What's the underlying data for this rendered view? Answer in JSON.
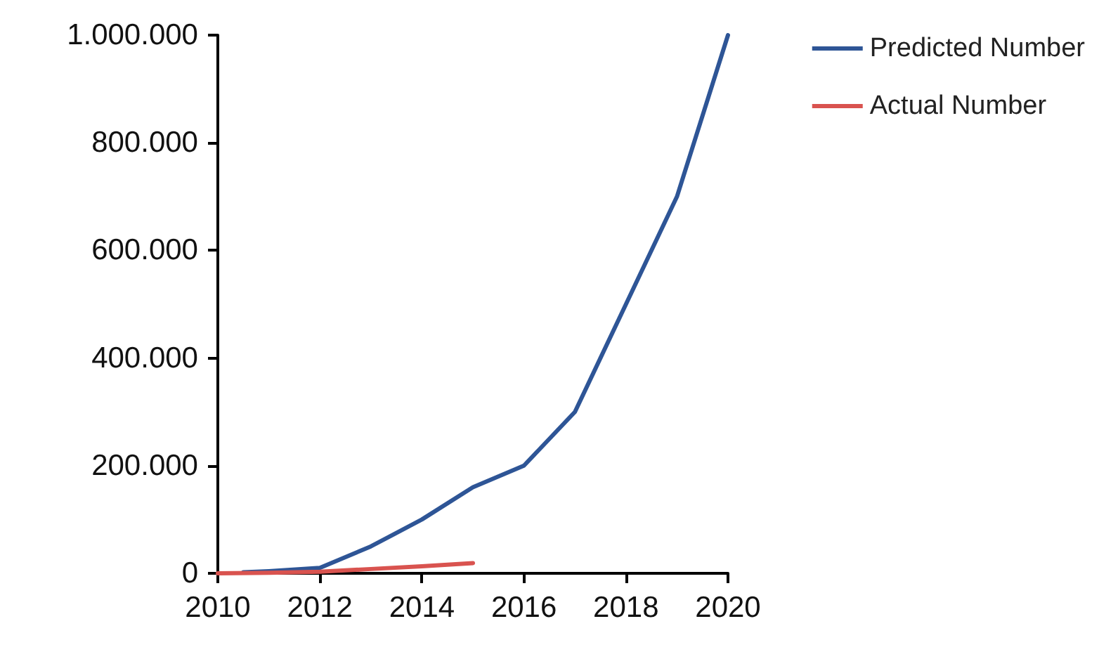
{
  "chart_data": {
    "type": "line",
    "x": [
      2010,
      2011,
      2012,
      2013,
      2014,
      2015
    ],
    "series": [
      {
        "name": "Predicted Number",
        "color": "#2e5596",
        "x": [
          2010.5,
          2011,
          2012,
          2013,
          2014,
          2015,
          2016,
          2017,
          2018,
          2019,
          2020
        ],
        "values": [
          2000,
          4000,
          10000,
          50000,
          100000,
          160000,
          200000,
          300000,
          500000,
          700000,
          1000000
        ]
      },
      {
        "name": "Actual Number",
        "color": "#d9534f",
        "values": [
          0,
          1000,
          3000,
          8000,
          13000,
          19000
        ]
      }
    ],
    "xlim": [
      2010,
      2020
    ],
    "xticks": [
      2010,
      2012,
      2014,
      2016,
      2018,
      2020
    ],
    "ylim": [
      0,
      1000000
    ],
    "yticks": [
      0,
      {
        "value": 200000,
        "label": "200.000"
      },
      {
        "value": 400000,
        "label": "400.000"
      },
      {
        "value": 600000,
        "label": "600.000"
      },
      {
        "value": 800000,
        "label": "800.000"
      },
      {
        "value": 1000000,
        "label": "1.000.000"
      }
    ],
    "grid": false,
    "legend": "top right",
    "marker": "none",
    "line_style": "solid"
  }
}
